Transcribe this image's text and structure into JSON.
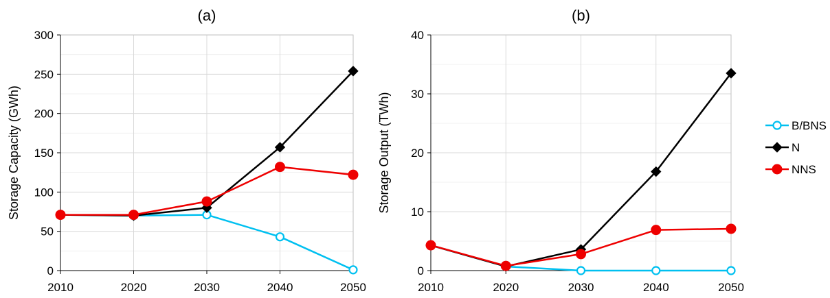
{
  "chart_data": [
    {
      "type": "line",
      "title": "(a)",
      "xlabel": "",
      "ylabel": "Storage Capacity (GWh)",
      "x": [
        2010,
        2020,
        2030,
        2040,
        2050
      ],
      "xlim": [
        2010,
        2050
      ],
      "ylim": [
        0,
        300
      ],
      "yticks": [
        0,
        50,
        100,
        150,
        200,
        250,
        300
      ],
      "grid": true,
      "series": [
        {
          "name": "B/BNS",
          "color": "#00c0f0",
          "marker": "circle-open",
          "values": [
            71,
            70,
            71,
            43,
            1
          ]
        },
        {
          "name": "N",
          "color": "#000000",
          "marker": "diamond",
          "values": [
            71,
            70,
            80,
            157,
            254
          ]
        },
        {
          "name": "NNS",
          "color": "#ee0000",
          "marker": "circle",
          "values": [
            71,
            71,
            88,
            132,
            122
          ]
        }
      ]
    },
    {
      "type": "line",
      "title": "(b)",
      "xlabel": "",
      "ylabel": "Storage Output  (TWh)",
      "x": [
        2010,
        2020,
        2030,
        2040,
        2050
      ],
      "xlim": [
        2010,
        2050
      ],
      "ylim": [
        0,
        40
      ],
      "yticks": [
        0,
        10,
        20,
        30,
        40
      ],
      "grid": true,
      "series": [
        {
          "name": "B/BNS",
          "color": "#00c0f0",
          "marker": "circle-open",
          "values": [
            4.3,
            0.7,
            0.0,
            0.0,
            0.0
          ]
        },
        {
          "name": "N",
          "color": "#000000",
          "marker": "diamond",
          "values": [
            4.3,
            0.7,
            3.6,
            16.8,
            33.5
          ]
        },
        {
          "name": "NNS",
          "color": "#ee0000",
          "marker": "circle",
          "values": [
            4.3,
            0.8,
            2.8,
            6.9,
            7.1
          ]
        }
      ]
    }
  ],
  "legend": {
    "placement": "right",
    "entries": [
      "B/BNS",
      "N",
      "NNS"
    ]
  }
}
